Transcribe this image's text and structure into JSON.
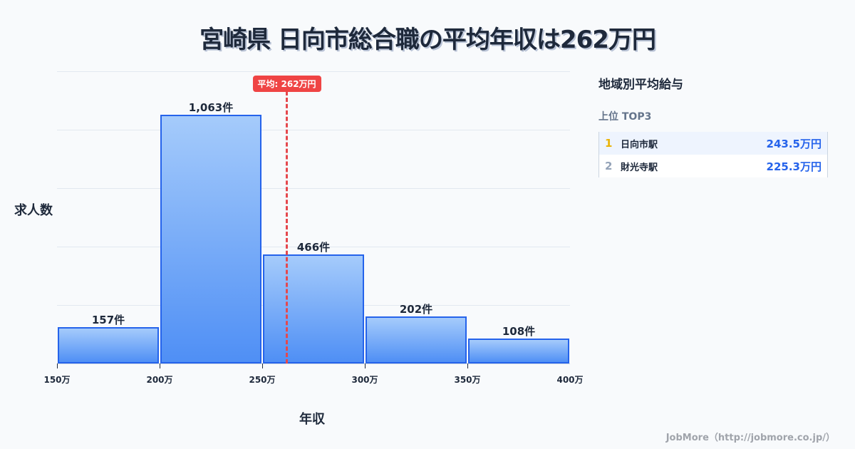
{
  "title": "宮崎県 日向市総合職の平均年収は262万円",
  "chart_data": {
    "type": "bar",
    "title": "宮崎県 日向市総合職の平均年収は262万円",
    "xlabel": "年収",
    "ylabel": "求人数",
    "bins": [
      {
        "from": 150,
        "to": 200,
        "value": 157,
        "label": "157件"
      },
      {
        "from": 200,
        "to": 250,
        "value": 1063,
        "label": "1,063件"
      },
      {
        "from": 250,
        "to": 300,
        "value": 466,
        "label": "466件"
      },
      {
        "from": 300,
        "to": 350,
        "value": 202,
        "label": "202件"
      },
      {
        "from": 350,
        "to": 400,
        "value": 108,
        "label": "108件"
      }
    ],
    "categories": [
      "150万-200万",
      "200万-250万",
      "250万-300万",
      "300万-350万",
      "350万-400万"
    ],
    "values": [
      157,
      1063,
      466,
      202,
      108
    ],
    "x_ticks": [
      "150万",
      "200万",
      "250万",
      "300万",
      "350万",
      "400万"
    ],
    "xlim": [
      150,
      400
    ],
    "ylim": [
      0,
      1250
    ],
    "grid": true,
    "average": {
      "value": 262,
      "label": "平均: 262万円",
      "color": "#ef4444"
    },
    "bar_color": "#4f8ff5",
    "bar_border_color": "#2563eb"
  },
  "panel": {
    "title": "地域別平均給与",
    "subtitle": "上位 TOP3",
    "items": [
      {
        "rank": "1",
        "name": "日向市駅",
        "value": "243.5万円",
        "rank_color": "#eab308"
      },
      {
        "rank": "2",
        "name": "財光寺駅",
        "value": "225.3万円",
        "rank_color": "#94a3b8"
      }
    ]
  },
  "footer": "JobMore（http://jobmore.co.jp/）"
}
